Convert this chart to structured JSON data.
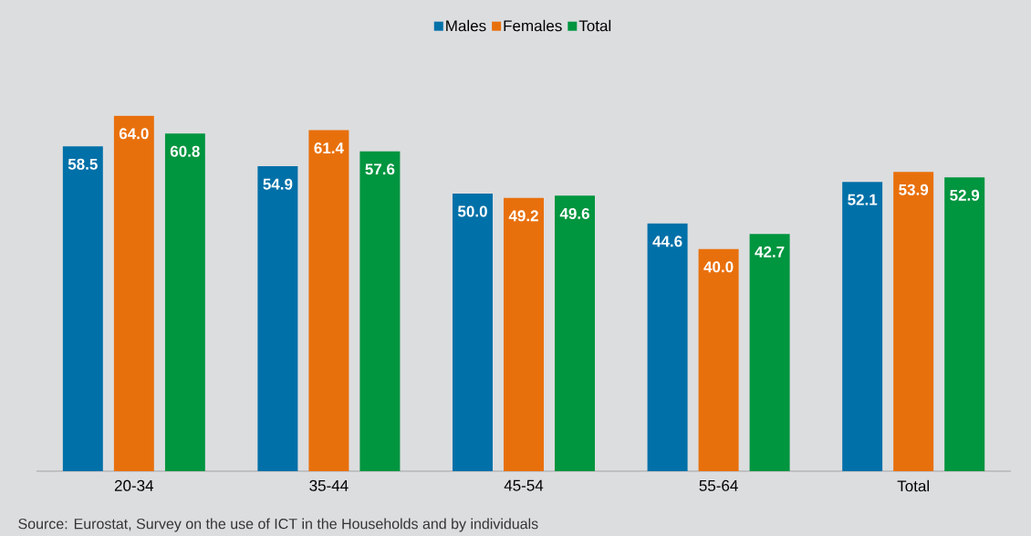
{
  "chart_data": {
    "type": "bar",
    "categories": [
      "20-34",
      "35-44",
      "45-54",
      "55-64",
      "Total"
    ],
    "series": [
      {
        "name": "Males",
        "color": "#0070a8",
        "values": [
          58.5,
          54.9,
          50.0,
          44.6,
          52.1
        ],
        "value_labels": [
          "58.5",
          "54.9",
          "50.0",
          "44.6",
          "52.1"
        ]
      },
      {
        "name": "Females",
        "color": "#e8700c",
        "values": [
          64.0,
          61.4,
          49.2,
          40.0,
          53.9
        ],
        "value_labels": [
          "64.0",
          "61.4",
          "49.2",
          "40.0",
          "53.9"
        ]
      },
      {
        "name": "Total",
        "color": "#00953f",
        "values": [
          60.8,
          57.6,
          49.6,
          42.7,
          52.9
        ],
        "value_labels": [
          "60.8",
          "57.6",
          "49.6",
          "42.7",
          "52.9"
        ]
      }
    ],
    "legend": "top",
    "annotations": [
      "Source: Eurostat, Survey on the use of ICT in the Households and by individuals"
    ]
  }
}
